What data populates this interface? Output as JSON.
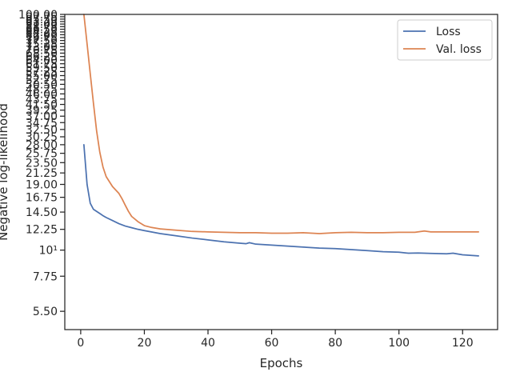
{
  "chart_data": {
    "type": "line",
    "title": "",
    "xlabel": "Epochs",
    "ylabel": "Negative log-likelihood",
    "xlim": [
      -5,
      131
    ],
    "ylim": [
      4.6,
      100
    ],
    "yscale": "log",
    "grid": false,
    "legend_position": "top-right",
    "xticks": [
      0,
      20,
      40,
      60,
      80,
      100,
      120
    ],
    "xtick_labels": [
      "0",
      "20",
      "40",
      "60",
      "80",
      "100",
      "120"
    ],
    "yticks": [
      5.5,
      7.75,
      10,
      12.25,
      14.5,
      16.75,
      19.0,
      21.25,
      23.5,
      25.75,
      28.0,
      30.25,
      32.5,
      34.75,
      37.0,
      39.25,
      41.5,
      43.75,
      46.0,
      48.25,
      50.5,
      52.75,
      55.0,
      57.25,
      59.5,
      61.75,
      64.0,
      66.25,
      68.5,
      70.75,
      73.0,
      75.25,
      77.5,
      79.75,
      82.0,
      84.25,
      86.5,
      88.75,
      91.0,
      93.25,
      95.5,
      97.75,
      100.0
    ],
    "ytick_labels": [
      "5.50",
      "7.75",
      "10¹",
      "12.25",
      "14.50",
      "16.75",
      "19.00",
      "21.25",
      "23.50",
      "25.75",
      "28.00",
      "30.25",
      "32.50",
      "34.75",
      "37.00",
      "39.25",
      "41.50",
      "43.75",
      "46.00",
      "48.25",
      "50.50",
      "52.75",
      "55.00",
      "57.25",
      "59.50",
      "61.75",
      "64.00",
      "66.25",
      "68.50",
      "70.75",
      "73.00",
      "75.25",
      "77.50",
      "79.75",
      "82.00",
      "84.25",
      "86.50",
      "88.75",
      "91.00",
      "93.25",
      "95.50",
      "97.75",
      "100.00"
    ],
    "series": [
      {
        "name": "Loss",
        "color": "#4c72b0",
        "points": [
          [
            1,
            28.0
          ],
          [
            2,
            19.0
          ],
          [
            3,
            15.8
          ],
          [
            4,
            14.9
          ],
          [
            5,
            14.6
          ],
          [
            6,
            14.3
          ],
          [
            7,
            14.0
          ],
          [
            8,
            13.75
          ],
          [
            10,
            13.35
          ],
          [
            12,
            12.95
          ],
          [
            14,
            12.65
          ],
          [
            16,
            12.45
          ],
          [
            18,
            12.25
          ],
          [
            20,
            12.1
          ],
          [
            25,
            11.75
          ],
          [
            30,
            11.5
          ],
          [
            35,
            11.25
          ],
          [
            40,
            11.05
          ],
          [
            45,
            10.85
          ],
          [
            50,
            10.7
          ],
          [
            52,
            10.65
          ],
          [
            53,
            10.75
          ],
          [
            55,
            10.6
          ],
          [
            60,
            10.5
          ],
          [
            65,
            10.4
          ],
          [
            70,
            10.3
          ],
          [
            75,
            10.2
          ],
          [
            80,
            10.15
          ],
          [
            85,
            10.05
          ],
          [
            90,
            9.95
          ],
          [
            95,
            9.85
          ],
          [
            100,
            9.8
          ],
          [
            103,
            9.7
          ],
          [
            106,
            9.72
          ],
          [
            110,
            9.68
          ],
          [
            115,
            9.65
          ],
          [
            117,
            9.7
          ],
          [
            120,
            9.55
          ],
          [
            125,
            9.45
          ]
        ]
      },
      {
        "name": "Val. loss",
        "color": "#dd8452",
        "points": [
          [
            1,
            100.0
          ],
          [
            2,
            75.0
          ],
          [
            3,
            56.0
          ],
          [
            4,
            42.0
          ],
          [
            5,
            32.0
          ],
          [
            6,
            26.0
          ],
          [
            7,
            22.5
          ],
          [
            8,
            20.5
          ],
          [
            10,
            18.6
          ],
          [
            12,
            17.4
          ],
          [
            13,
            16.5
          ],
          [
            14,
            15.5
          ],
          [
            15,
            14.6
          ],
          [
            16,
            13.9
          ],
          [
            18,
            13.2
          ],
          [
            20,
            12.7
          ],
          [
            22,
            12.5
          ],
          [
            25,
            12.3
          ],
          [
            30,
            12.15
          ],
          [
            35,
            12.0
          ],
          [
            40,
            11.95
          ],
          [
            45,
            11.9
          ],
          [
            50,
            11.85
          ],
          [
            55,
            11.85
          ],
          [
            60,
            11.8
          ],
          [
            65,
            11.8
          ],
          [
            70,
            11.85
          ],
          [
            75,
            11.75
          ],
          [
            80,
            11.85
          ],
          [
            85,
            11.9
          ],
          [
            90,
            11.85
          ],
          [
            95,
            11.85
          ],
          [
            100,
            11.9
          ],
          [
            105,
            11.9
          ],
          [
            108,
            12.05
          ],
          [
            110,
            11.95
          ],
          [
            115,
            11.95
          ],
          [
            120,
            11.95
          ],
          [
            125,
            11.95
          ]
        ]
      }
    ]
  }
}
